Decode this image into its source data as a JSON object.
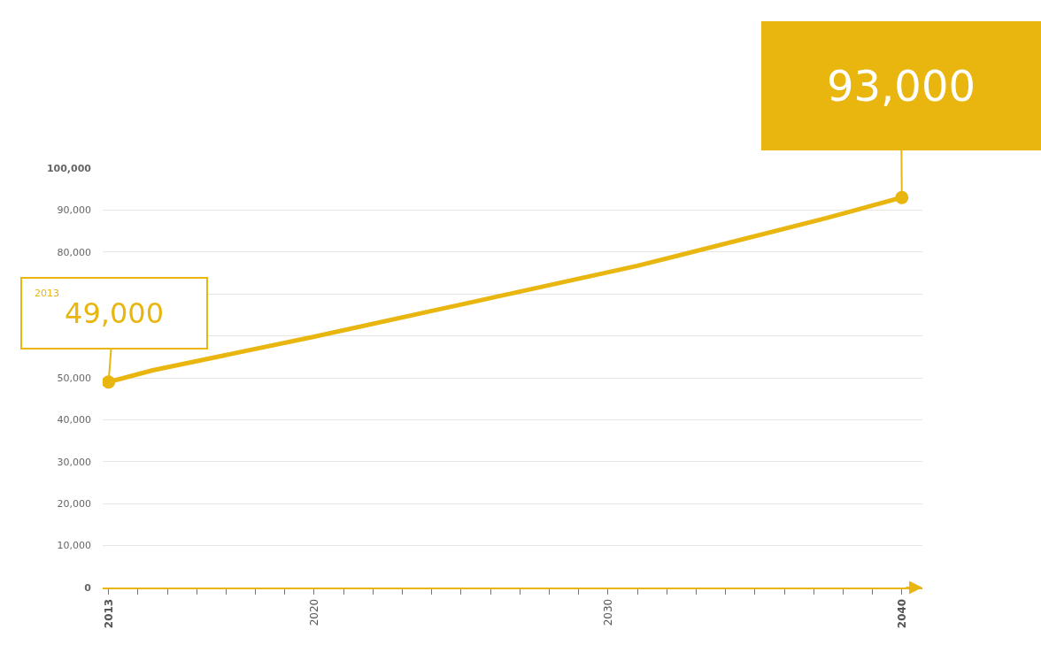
{
  "chart_data": {
    "type": "line",
    "x": [
      2013,
      2014.5,
      2020,
      2031,
      2037.5,
      2040
    ],
    "series": [
      {
        "type": "line",
        "color": "#e9b50f",
        "values": [
          49000,
          51800,
          59800,
          76700,
          88200,
          93000
        ]
      },
      {
        "type": "scatter",
        "color": "#e9b50f",
        "x": [
          2013,
          2040
        ],
        "values": [
          49000,
          93000
        ],
        "marker": "circle"
      }
    ],
    "xlim": [
      2012.8,
      2040.7
    ],
    "xticks": [
      {
        "value": 2013,
        "label": "2013"
      },
      {
        "value": 2014,
        "label": null
      },
      {
        "value": 2015,
        "label": null
      },
      {
        "value": 2016,
        "label": null
      },
      {
        "value": 2017,
        "label": null
      },
      {
        "value": 2018,
        "label": null
      },
      {
        "value": 2019,
        "label": null
      },
      {
        "value": 2020,
        "label": "2020"
      },
      {
        "value": 2021,
        "label": null
      },
      {
        "value": 2022,
        "label": null
      },
      {
        "value": 2023,
        "label": null
      },
      {
        "value": 2024,
        "label": null
      },
      {
        "value": 2025,
        "label": null
      },
      {
        "value": 2026,
        "label": null
      },
      {
        "value": 2027,
        "label": null
      },
      {
        "value": 2028,
        "label": null
      },
      {
        "value": 2029,
        "label": null
      },
      {
        "value": 2030,
        "label": "2030"
      },
      {
        "value": 2031,
        "label": null
      },
      {
        "value": 2032,
        "label": null
      },
      {
        "value": 2033,
        "label": null
      },
      {
        "value": 2034,
        "label": null
      },
      {
        "value": 2035,
        "label": null
      },
      {
        "value": 2036,
        "label": null
      },
      {
        "value": 2037,
        "label": null
      },
      {
        "value": 2038,
        "label": null
      },
      {
        "value": 2039,
        "label": null
      },
      {
        "value": 2040,
        "label": "2040"
      }
    ],
    "ylim": [
      0,
      100000
    ],
    "yticks": [
      {
        "value": 0,
        "label": "0"
      },
      {
        "value": 10000,
        "label": "10,000"
      },
      {
        "value": 20000,
        "label": "20,000"
      },
      {
        "value": 30000,
        "label": "30,000"
      },
      {
        "value": 40000,
        "label": "40,000"
      },
      {
        "value": 50000,
        "label": "50,000"
      },
      {
        "value": 60000,
        "label": null
      },
      {
        "value": 70000,
        "label": null
      },
      {
        "value": 80000,
        "label": "80,000"
      },
      {
        "value": 90000,
        "label": "90,000"
      },
      {
        "value": 100000,
        "label": "100,000"
      }
    ],
    "grid": "y",
    "marker": "none",
    "line_style": "solid",
    "annotations": [
      "2013",
      {
        "text": "49,000",
        "x": 2013,
        "y": 49000
      },
      {
        "text": "93,000",
        "x": 2040,
        "y": 93000
      }
    ]
  }
}
